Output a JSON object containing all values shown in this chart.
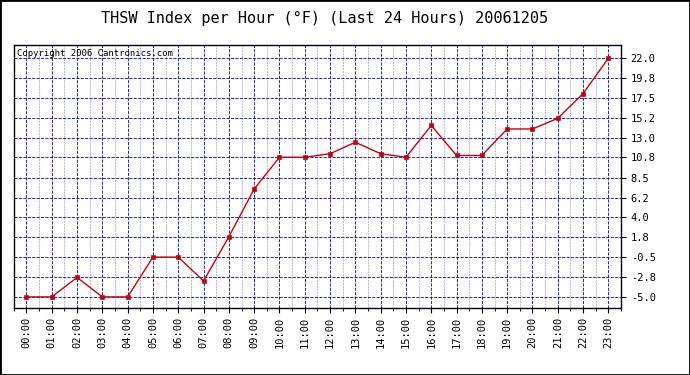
{
  "title": "THSW Index per Hour (°F) (Last 24 Hours) 20061205",
  "copyright": "Copyright 2006 Cantronics.com",
  "x_labels": [
    "00:00",
    "01:00",
    "02:00",
    "03:00",
    "04:00",
    "05:00",
    "06:00",
    "07:00",
    "08:00",
    "09:00",
    "10:00",
    "11:00",
    "12:00",
    "13:00",
    "14:00",
    "15:00",
    "16:00",
    "17:00",
    "18:00",
    "19:00",
    "20:00",
    "21:00",
    "22:00",
    "23:00"
  ],
  "y_values": [
    -5.0,
    -5.0,
    -2.8,
    -5.0,
    -5.0,
    -0.5,
    -0.5,
    -3.2,
    1.8,
    7.2,
    10.8,
    10.8,
    11.2,
    12.5,
    11.2,
    10.8,
    14.4,
    11.0,
    11.0,
    14.0,
    14.0,
    15.2,
    18.0,
    22.0
  ],
  "yticks": [
    22.0,
    19.8,
    17.5,
    15.2,
    13.0,
    10.8,
    8.5,
    6.2,
    4.0,
    1.8,
    -0.5,
    -2.8,
    -5.0
  ],
  "ylim": [
    -6.2,
    23.5
  ],
  "xlim": [
    -0.5,
    23.5
  ],
  "line_color": "#cc0000",
  "marker_color": "#cc0000",
  "bg_color": "#ffffff",
  "grid_color": "#0000bb",
  "title_fontsize": 11,
  "copyright_fontsize": 6.5,
  "tick_fontsize": 7.5
}
